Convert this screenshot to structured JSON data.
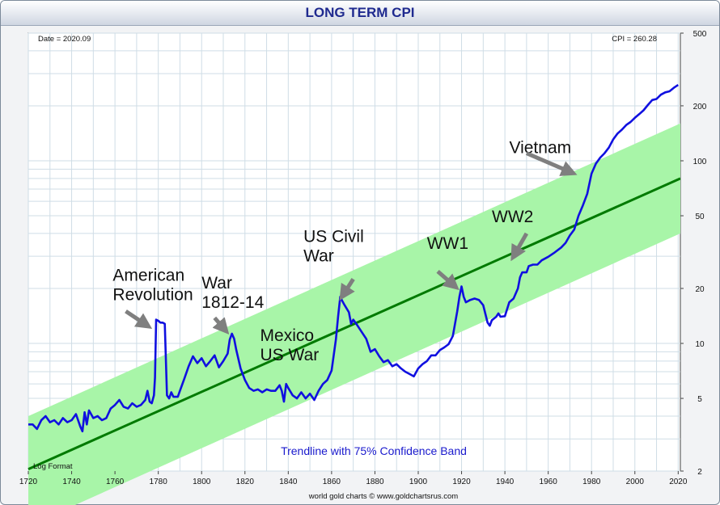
{
  "chart_data": {
    "type": "line",
    "title": "LONG TERM CPI",
    "scale": "log",
    "scale_label": "Log Format",
    "date_label": "Date = 2020.09",
    "cpi_label": "CPI = 260.28",
    "footer": "world gold charts © www.goldchartsrus.com",
    "band_label": "Trendline with 75% Confidence Band",
    "xlim": [
      1720,
      2021
    ],
    "ylim": [
      2,
      500
    ],
    "x_ticks": [
      1720,
      1740,
      1760,
      1780,
      1800,
      1820,
      1840,
      1860,
      1880,
      1900,
      1920,
      1940,
      1960,
      1980,
      2000,
      2020
    ],
    "y_ticks": [
      2,
      5,
      10,
      20,
      50,
      100,
      200,
      500
    ],
    "colors": {
      "series": "#1010e0",
      "trend": "#007a00",
      "band": "#a8f5a8",
      "grid": "#cfdde6",
      "arrow": "#7f7f7f"
    },
    "trendline": {
      "name": "Trendline",
      "x": [
        1720,
        2021
      ],
      "y": [
        2.05,
        80
      ]
    },
    "band": {
      "name": "75% Confidence Band",
      "upper": [
        [
          1720,
          4.0
        ],
        [
          2021,
          160
        ]
      ],
      "lower": [
        [
          1720,
          1.0
        ],
        [
          2021,
          40
        ]
      ]
    },
    "series": [
      {
        "name": "CPI",
        "points": [
          [
            1720,
            3.6
          ],
          [
            1722,
            3.6
          ],
          [
            1724,
            3.4
          ],
          [
            1726,
            3.8
          ],
          [
            1728,
            4.0
          ],
          [
            1730,
            3.7
          ],
          [
            1732,
            3.8
          ],
          [
            1734,
            3.6
          ],
          [
            1736,
            3.9
          ],
          [
            1738,
            3.7
          ],
          [
            1740,
            3.8
          ],
          [
            1742,
            4.1
          ],
          [
            1744,
            3.5
          ],
          [
            1745,
            3.3
          ],
          [
            1746,
            4.2
          ],
          [
            1747,
            3.6
          ],
          [
            1748,
            4.3
          ],
          [
            1750,
            3.9
          ],
          [
            1752,
            4.0
          ],
          [
            1754,
            3.8
          ],
          [
            1756,
            3.9
          ],
          [
            1758,
            4.4
          ],
          [
            1760,
            4.6
          ],
          [
            1762,
            4.9
          ],
          [
            1764,
            4.5
          ],
          [
            1766,
            4.4
          ],
          [
            1768,
            4.7
          ],
          [
            1770,
            4.5
          ],
          [
            1772,
            4.6
          ],
          [
            1774,
            4.9
          ],
          [
            1775,
            5.5
          ],
          [
            1776,
            4.8
          ],
          [
            1777,
            4.7
          ],
          [
            1778,
            5.2
          ],
          [
            1778.5,
            6.5
          ],
          [
            1779,
            13.5
          ],
          [
            1780,
            13.3
          ],
          [
            1781,
            13.0
          ],
          [
            1782,
            13.0
          ],
          [
            1783,
            12.8
          ],
          [
            1784,
            5.2
          ],
          [
            1785,
            5.0
          ],
          [
            1786,
            5.4
          ],
          [
            1787,
            5.1
          ],
          [
            1789,
            5.1
          ],
          [
            1790,
            5.5
          ],
          [
            1792,
            6.4
          ],
          [
            1794,
            7.5
          ],
          [
            1796,
            8.5
          ],
          [
            1798,
            7.8
          ],
          [
            1800,
            8.3
          ],
          [
            1802,
            7.5
          ],
          [
            1804,
            8.0
          ],
          [
            1806,
            8.6
          ],
          [
            1808,
            7.4
          ],
          [
            1810,
            8.0
          ],
          [
            1812,
            8.8
          ],
          [
            1813,
            10.5
          ],
          [
            1814,
            11.3
          ],
          [
            1815,
            10.6
          ],
          [
            1816,
            9.2
          ],
          [
            1818,
            7.3
          ],
          [
            1820,
            6.3
          ],
          [
            1822,
            5.7
          ],
          [
            1824,
            5.5
          ],
          [
            1826,
            5.6
          ],
          [
            1828,
            5.4
          ],
          [
            1830,
            5.6
          ],
          [
            1832,
            5.5
          ],
          [
            1834,
            5.5
          ],
          [
            1836,
            5.9
          ],
          [
            1837,
            5.5
          ],
          [
            1838,
            4.8
          ],
          [
            1839,
            6.0
          ],
          [
            1840,
            5.7
          ],
          [
            1842,
            5.2
          ],
          [
            1844,
            5.0
          ],
          [
            1846,
            5.4
          ],
          [
            1848,
            5.0
          ],
          [
            1850,
            5.3
          ],
          [
            1852,
            4.9
          ],
          [
            1854,
            5.5
          ],
          [
            1856,
            6.0
          ],
          [
            1858,
            6.3
          ],
          [
            1860,
            7.1
          ],
          [
            1862,
            10.5
          ],
          [
            1863,
            14.0
          ],
          [
            1864,
            18.0
          ],
          [
            1865,
            17.0
          ],
          [
            1866,
            16.2
          ],
          [
            1868,
            14.8
          ],
          [
            1869,
            12.8
          ],
          [
            1870,
            13.5
          ],
          [
            1872,
            12.5
          ],
          [
            1874,
            11.5
          ],
          [
            1876,
            10.6
          ],
          [
            1878,
            9.0
          ],
          [
            1880,
            9.3
          ],
          [
            1882,
            8.5
          ],
          [
            1884,
            7.9
          ],
          [
            1886,
            8.1
          ],
          [
            1888,
            7.5
          ],
          [
            1890,
            7.7
          ],
          [
            1892,
            7.3
          ],
          [
            1894,
            7.0
          ],
          [
            1896,
            6.8
          ],
          [
            1898,
            6.6
          ],
          [
            1900,
            7.3
          ],
          [
            1902,
            7.7
          ],
          [
            1904,
            8.0
          ],
          [
            1906,
            8.6
          ],
          [
            1908,
            8.6
          ],
          [
            1910,
            9.2
          ],
          [
            1912,
            9.5
          ],
          [
            1914,
            9.9
          ],
          [
            1916,
            11.0
          ],
          [
            1918,
            15.0
          ],
          [
            1919,
            18.0
          ],
          [
            1920,
            20.5
          ],
          [
            1921,
            18.0
          ],
          [
            1922,
            16.8
          ],
          [
            1924,
            17.3
          ],
          [
            1926,
            17.6
          ],
          [
            1928,
            17.3
          ],
          [
            1930,
            16.2
          ],
          [
            1931,
            14.5
          ],
          [
            1932,
            13.0
          ],
          [
            1933,
            12.5
          ],
          [
            1934,
            13.4
          ],
          [
            1936,
            14.0
          ],
          [
            1937,
            14.6
          ],
          [
            1938,
            14.0
          ],
          [
            1940,
            14.1
          ],
          [
            1942,
            16.8
          ],
          [
            1944,
            17.6
          ],
          [
            1946,
            20.0
          ],
          [
            1947,
            23.0
          ],
          [
            1948,
            24.5
          ],
          [
            1950,
            24.5
          ],
          [
            1951,
            26.5
          ],
          [
            1953,
            27.0
          ],
          [
            1955,
            27.0
          ],
          [
            1957,
            28.5
          ],
          [
            1960,
            29.8
          ],
          [
            1963,
            31.5
          ],
          [
            1966,
            33.5
          ],
          [
            1968,
            35.5
          ],
          [
            1970,
            39.0
          ],
          [
            1972,
            42.0
          ],
          [
            1974,
            50.0
          ],
          [
            1976,
            57.0
          ],
          [
            1978,
            66.0
          ],
          [
            1980,
            85.0
          ],
          [
            1982,
            96.5
          ],
          [
            1984,
            104
          ],
          [
            1986,
            110
          ],
          [
            1988,
            118
          ],
          [
            1990,
            131
          ],
          [
            1992,
            141
          ],
          [
            1994,
            148
          ],
          [
            1996,
            157
          ],
          [
            1998,
            163
          ],
          [
            2000,
            172
          ],
          [
            2002,
            180
          ],
          [
            2004,
            189
          ],
          [
            2006,
            202
          ],
          [
            2008,
            215
          ],
          [
            2010,
            218
          ],
          [
            2012,
            230
          ],
          [
            2014,
            237
          ],
          [
            2016,
            240
          ],
          [
            2018,
            251
          ],
          [
            2020,
            260.28
          ]
        ]
      }
    ],
    "annotations": [
      {
        "lines": [
          "American",
          "Revolution"
        ],
        "x": 1759,
        "y": 22,
        "arrow_from": [
          1765,
          15.0
        ],
        "arrow_to": [
          1775,
          12.5
        ]
      },
      {
        "lines": [
          "War",
          "1812-14"
        ],
        "x": 1800,
        "y": 20,
        "arrow_from": [
          1806,
          13.8
        ],
        "arrow_to": [
          1811,
          11.8
        ]
      },
      {
        "lines": [
          "Mexico",
          "US War"
        ],
        "x": 1827,
        "y": 10.3,
        "arrow_from": null,
        "arrow_to": null
      },
      {
        "lines": [
          "US Civil",
          "War"
        ],
        "x": 1847,
        "y": 36,
        "arrow_from": [
          1870,
          22.5
        ],
        "arrow_to": [
          1865,
          18.2
        ]
      },
      {
        "lines": [
          "WW1"
        ],
        "x": 1904,
        "y": 33,
        "arrow_from": [
          1909,
          24.8
        ],
        "arrow_to": [
          1917,
          20.5
        ]
      },
      {
        "lines": [
          "WW2"
        ],
        "x": 1934,
        "y": 46,
        "arrow_from": [
          1950,
          40.0
        ],
        "arrow_to": [
          1944,
          30.0
        ]
      },
      {
        "lines": [
          "Vietnam"
        ],
        "x": 1942,
        "y": 110,
        "arrow_from": [
          1950,
          110
        ],
        "arrow_to": [
          1971,
          86
        ]
      }
    ]
  }
}
